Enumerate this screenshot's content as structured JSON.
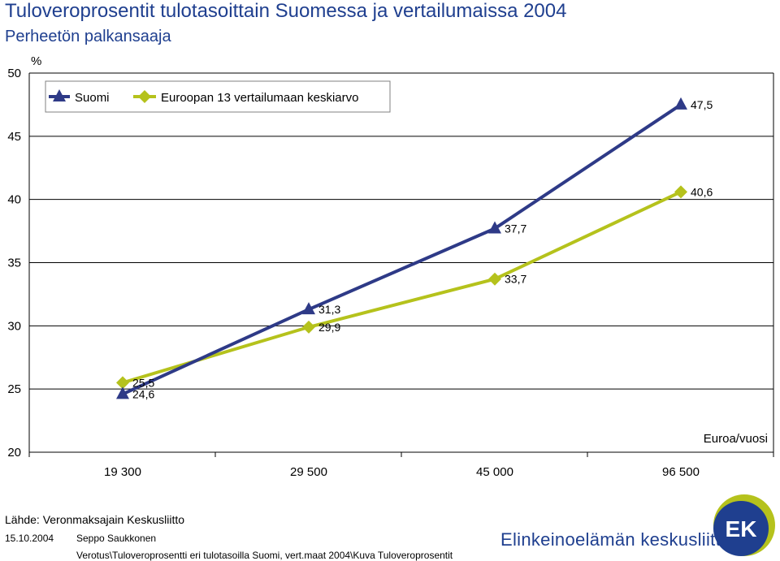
{
  "header": {
    "title": "Tuloveroprosentit tulotasoittain Suomessa ja vertailumaissa 2004",
    "subtitle": "Perheetön palkansaaja"
  },
  "footer": {
    "source": "Lähde: Veronmaksajain Keskusliitto",
    "date": "15.10.2004",
    "author": "Seppo Saukkonen",
    "file_path": "Verotus\\Tuloveroprosentti eri tulotasoilla Suomi, vert.maat 2004\\Kuva Tuloveroprosentit",
    "brand": "Elinkeinoelämän keskusliitto",
    "logo_text": "EK"
  },
  "colors": {
    "suomi": "#2e3a87",
    "europe": "#b5c21c",
    "title": "#1f3f8f",
    "gridline": "#000000"
  },
  "chart_data": {
    "type": "line",
    "title": "Tuloveroprosentit tulotasoittain Suomessa ja vertailumaissa 2004",
    "subtitle": "Perheetön palkansaaja",
    "ylabel": "%",
    "xlabel": "Euroa/vuosi",
    "categories": [
      "19 300",
      "29 500",
      "45 000",
      "96 500"
    ],
    "ylim": [
      20,
      50
    ],
    "yticks": [
      20,
      25,
      30,
      35,
      40,
      45,
      50
    ],
    "grid": true,
    "legend_position": "top-left",
    "series": [
      {
        "name": "Suomi",
        "marker": "triangle",
        "values": [
          24.6,
          31.3,
          37.7,
          47.5
        ],
        "labels": [
          "24,6",
          "31,3",
          "37,7",
          "47,5"
        ]
      },
      {
        "name": "Euroopan 13 vertailumaan keskiarvo",
        "marker": "diamond",
        "values": [
          25.5,
          29.9,
          33.7,
          40.6
        ],
        "labels": [
          "25,5",
          "29,9",
          "33,7",
          "40,6"
        ]
      }
    ]
  }
}
